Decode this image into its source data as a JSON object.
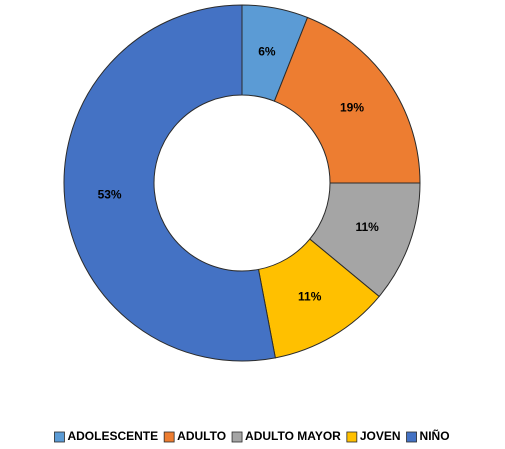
{
  "chart_data": {
    "type": "donut",
    "categories": [
      "ADOLESCENTE",
      "ADULTO",
      "ADULTO MAYOR",
      "JOVEN",
      "NIÑO"
    ],
    "values": [
      6,
      19,
      11,
      11,
      53
    ],
    "value_labels": [
      "6%",
      "19%",
      "11%",
      "11%",
      "53%"
    ],
    "colors": [
      "#5b9bd5",
      "#ed7d31",
      "#a5a5a5",
      "#ffc000",
      "#4472c4"
    ],
    "legend": "bottom"
  }
}
